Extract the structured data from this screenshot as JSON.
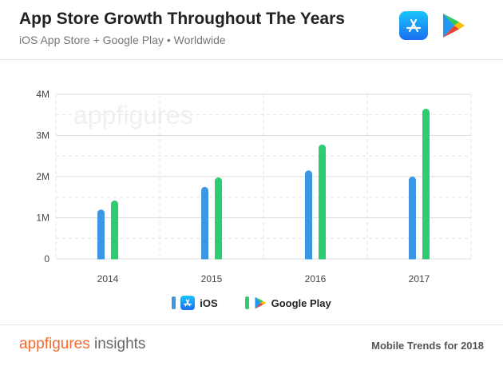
{
  "header": {
    "title": "App Store Growth Throughout The Years",
    "subtitle": "iOS App Store + Google Play • Worldwide"
  },
  "icons": {
    "appstore": "app-store-icon",
    "googleplay": "google-play-icon"
  },
  "colors": {
    "ios": "#3b97e3",
    "google_play": "#2ecc71",
    "brand": "#f26a2e"
  },
  "watermark": "appfigures",
  "chart_data": {
    "type": "bar",
    "categories": [
      "2014",
      "2015",
      "2016",
      "2017"
    ],
    "series": [
      {
        "name": "iOS",
        "values": [
          1.2,
          1.75,
          2.15,
          2.0
        ]
      },
      {
        "name": "Google Play",
        "values": [
          1.42,
          1.98,
          2.78,
          3.65
        ]
      }
    ],
    "yticks": [
      {
        "value": 0,
        "label": "0"
      },
      {
        "value": 1,
        "label": "1M"
      },
      {
        "value": 2,
        "label": "2M"
      },
      {
        "value": 3,
        "label": "3M"
      },
      {
        "value": 4,
        "label": "4M"
      }
    ],
    "ylim": [
      0,
      4
    ],
    "grid": true,
    "legend_position": "bottom-center"
  },
  "legend": {
    "ios_label": "iOS",
    "google_play_label": "Google Play"
  },
  "footer": {
    "brand": "appfigures",
    "brand_sub": " insights",
    "right_text": "Mobile Trends for 2018"
  }
}
